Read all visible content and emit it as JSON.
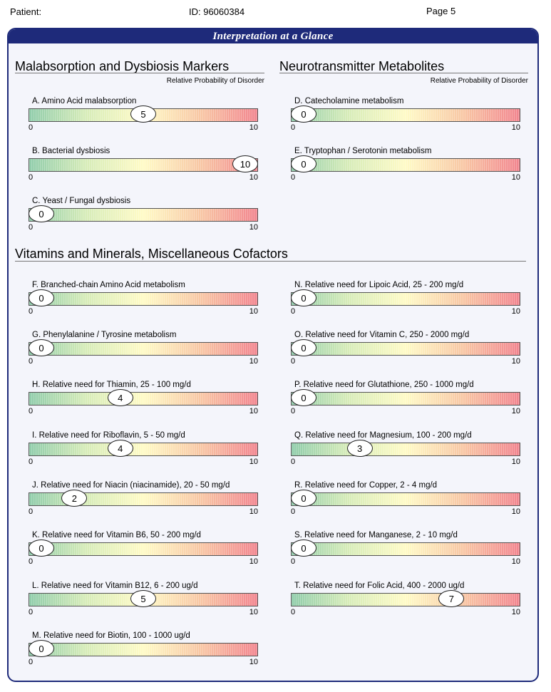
{
  "header": {
    "patient_label": "Patient:",
    "id_label": "ID: 96060384",
    "page_label": "Page 5"
  },
  "panel_title": "Interpretation at a Glance",
  "sections": {
    "malabsorption": {
      "title": "Malabsorption and Dysbiosis Markers",
      "subtitle": "Relative Probability of Disorder"
    },
    "neuro": {
      "title": "Neurotransmitter Metabolites",
      "subtitle": "Relative Probability of Disorder"
    },
    "vitamins": {
      "title": "Vitamins and Minerals, Miscellaneous Cofactors"
    }
  },
  "scale": {
    "min": 0,
    "max": 10,
    "min_label": "0",
    "max_label": "10"
  },
  "markers": [
    {
      "key": "A",
      "label": "A.  Amino Acid malabsorption",
      "value": 5
    },
    {
      "key": "B",
      "label": "B.  Bacterial dysbiosis",
      "value": 10
    },
    {
      "key": "C",
      "label": "C.  Yeast / Fungal dysbiosis",
      "value": 0
    },
    {
      "key": "D",
      "label": "D.  Catecholamine metabolism",
      "value": 0
    },
    {
      "key": "E",
      "label": "E.  Tryptophan / Serotonin metabolism",
      "value": 0
    },
    {
      "key": "F",
      "label": "F.  Branched-chain Amino Acid metabolism",
      "value": 0
    },
    {
      "key": "G",
      "label": "G.  Phenylalanine / Tyrosine metabolism",
      "value": 0
    },
    {
      "key": "H",
      "label": "H.  Relative need for Thiamin, 25 - 100 mg/d",
      "value": 4
    },
    {
      "key": "I",
      "label": "I.  Relative need for Riboflavin, 5 - 50 mg/d",
      "value": 4
    },
    {
      "key": "J",
      "label": "J.  Relative need for Niacin (niacinamide), 20 - 50 mg/d",
      "value": 2
    },
    {
      "key": "K",
      "label": "K.  Relative need for Vitamin B6, 50 - 200 mg/d",
      "value": 0
    },
    {
      "key": "L",
      "label": "L.  Relative need for Vitamin B12, 6 - 200 ug/d",
      "value": 5
    },
    {
      "key": "M",
      "label": "M.  Relative need for Biotin, 100 - 1000 ug/d",
      "value": 0
    },
    {
      "key": "N",
      "label": "N.  Relative need for Lipoic Acid, 25 - 200 mg/d",
      "value": 0
    },
    {
      "key": "O",
      "label": "O.  Relative need for Vitamin C, 250 - 2000 mg/d",
      "value": 0
    },
    {
      "key": "P",
      "label": "P.  Relative need for Glutathione, 250 - 1000 mg/d",
      "value": 0
    },
    {
      "key": "Q",
      "label": "Q.  Relative need for Magnesium, 100 - 200 mg/d",
      "value": 3
    },
    {
      "key": "R",
      "label": "R.  Relative need for Copper, 2 - 4 mg/d",
      "value": 0
    },
    {
      "key": "S",
      "label": "S.  Relative need for Manganese, 2 - 10 mg/d",
      "value": 0
    },
    {
      "key": "T",
      "label": "T.  Relative need for Folic Acid, 400 - 2000 ug/d",
      "value": 7
    }
  ]
}
